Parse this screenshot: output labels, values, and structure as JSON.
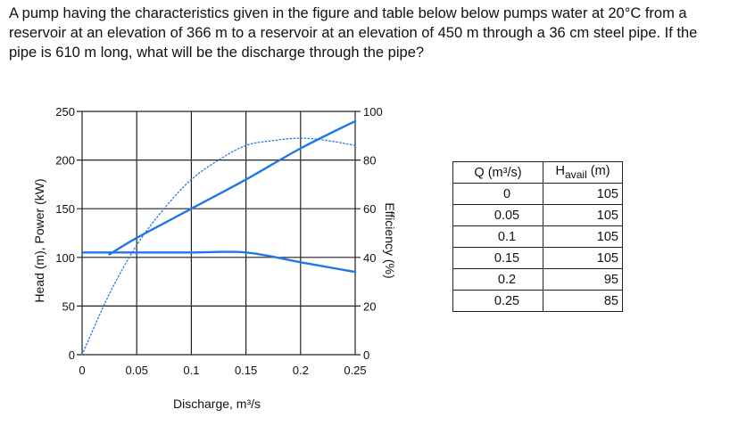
{
  "problem": {
    "text": "A pump having the characteristics given in the figure and table below below pumps water at 20°C from a reservoir at an elevation of 366 m to a reservoir at an elevation of 450 m through a 36 cm steel pipe. If the pipe is 610 m long, what will be the discharge through the pipe?"
  },
  "chart_data": {
    "type": "line",
    "xlabel": "Discharge, m³/s",
    "ylabel": "Head (m), Power (kW)",
    "y2label": "Efficiency (%)",
    "xlim": [
      0,
      0.25
    ],
    "ylim": [
      0,
      250
    ],
    "y2lim": [
      0,
      100
    ],
    "grid": true,
    "x_ticks": [
      "0",
      "0.05",
      "0.1",
      "0.15",
      "0.2",
      "0.25"
    ],
    "y_ticks": [
      "0",
      "50",
      "100",
      "150",
      "200",
      "250"
    ],
    "y2_ticks": [
      "0",
      "20",
      "40",
      "60",
      "80",
      "100"
    ],
    "series": [
      {
        "curve": "head",
        "style": "solid",
        "color": "#1f78e6",
        "axis": "left",
        "x": [
          0,
          0.05,
          0.1,
          0.15,
          0.2,
          0.25
        ],
        "y": [
          105,
          105,
          105,
          105,
          95,
          85
        ]
      },
      {
        "curve": "power",
        "style": "solid",
        "color": "#1f78e6",
        "axis": "left",
        "x": [
          0.025,
          0.05,
          0.1,
          0.15,
          0.2,
          0.25
        ],
        "y": [
          103,
          120,
          150,
          180,
          212,
          240
        ]
      },
      {
        "curve": "efficiency",
        "style": "dotted",
        "color": "#1f78e6",
        "axis": "right",
        "x": [
          0,
          0.025,
          0.05,
          0.075,
          0.1,
          0.125,
          0.15,
          0.175,
          0.2,
          0.225,
          0.25
        ],
        "y": [
          0,
          25,
          45,
          60,
          72,
          80,
          86,
          88,
          89,
          88,
          86
        ]
      }
    ]
  },
  "table": {
    "headers": {
      "q": "Q (m³/s)",
      "h_main": "H",
      "h_sub": "avail",
      "h_unit": " (m)"
    },
    "rows": [
      {
        "q": "0",
        "h": "105"
      },
      {
        "q": "0.05",
        "h": "105"
      },
      {
        "q": "0.1",
        "h": "105"
      },
      {
        "q": "0.15",
        "h": "105"
      },
      {
        "q": "0.2",
        "h": "95"
      },
      {
        "q": "0.25",
        "h": "85"
      }
    ]
  }
}
